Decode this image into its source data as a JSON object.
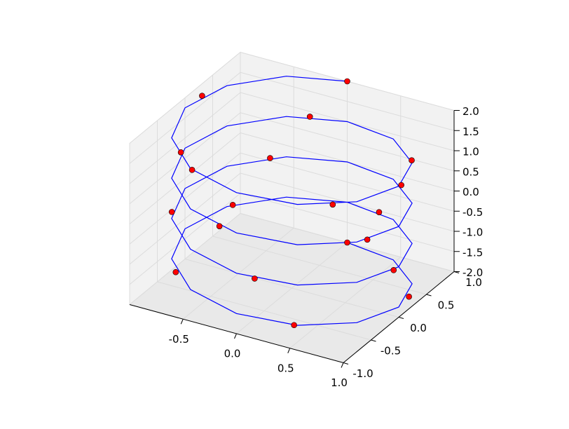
{
  "chart_data": {
    "type": "line3d",
    "xlim": [
      -1,
      1
    ],
    "ylim": [
      -1,
      1
    ],
    "zlim": [
      -2,
      2
    ],
    "xticks": [
      -0.5,
      {
        "value": 0,
        "label": "0.0"
      },
      0.5,
      {
        "value": 1,
        "label": "1.0"
      }
    ],
    "yticks": [
      {
        "value": -1,
        "label": "-1.0"
      },
      -0.5,
      {
        "value": 0,
        "label": "0.0"
      },
      0.5,
      {
        "value": 1,
        "label": "1.0"
      }
    ],
    "zticks": [
      {
        "value": -2,
        "label": "-2.0"
      },
      -1.5,
      {
        "value": -1,
        "label": "-1.0"
      },
      -0.5,
      {
        "value": 0,
        "label": "0.0"
      },
      0.5,
      {
        "value": 1,
        "label": "1.0"
      },
      1.5,
      {
        "value": 2,
        "label": "2.0"
      }
    ],
    "grid": true,
    "series": [
      {
        "kind": "line",
        "color": "#0000ff",
        "x": [
          0,
          0.5,
          0.866,
          1,
          0.866,
          0.5,
          0,
          -0.5,
          -0.866,
          -1,
          -0.866,
          -0.5,
          0,
          0.5,
          0.866,
          1,
          0.866,
          0.5,
          0,
          -0.5,
          -0.866,
          -1,
          -0.866,
          -0.5,
          0,
          0.5,
          0.866,
          1,
          0.866,
          0.5,
          0,
          -0.5,
          -0.866,
          -1,
          -0.866,
          -0.5,
          0,
          0.5,
          0.866,
          1,
          0.866,
          0.5,
          0,
          -0.5,
          -0.866,
          -1,
          -0.866,
          -0.5,
          0
        ],
        "y": [
          1,
          0.866,
          0.5,
          0,
          -0.5,
          -0.866,
          -1,
          -0.866,
          -0.5,
          0,
          0.5,
          0.866,
          1,
          0.866,
          0.5,
          0,
          -0.5,
          -0.866,
          -1,
          -0.866,
          -0.5,
          0,
          0.5,
          0.866,
          1,
          0.866,
          0.5,
          0,
          -0.5,
          -0.866,
          -1,
          -0.866,
          -0.5,
          0,
          0.5,
          0.866,
          1,
          0.866,
          0.5,
          0,
          -0.5,
          -0.866,
          -1,
          -0.866,
          -0.5,
          0,
          0.5,
          0.866,
          1
        ],
        "z": [
          -2,
          -1.917,
          -1.833,
          -1.75,
          -1.667,
          -1.583,
          -1.5,
          -1.417,
          -1.333,
          -1.25,
          -1.167,
          -1.083,
          -1,
          -0.917,
          -0.833,
          -0.75,
          -0.667,
          -0.583,
          -0.5,
          -0.417,
          -0.333,
          -0.25,
          -0.167,
          -0.083,
          0,
          0.083,
          0.167,
          0.25,
          0.333,
          0.417,
          0.5,
          0.583,
          0.667,
          0.75,
          0.833,
          0.917,
          1,
          1.083,
          1.167,
          1.25,
          1.333,
          1.417,
          1.5,
          1.583,
          1.667,
          1.75,
          1.833,
          1.917,
          2
        ]
      },
      {
        "kind": "scatter",
        "color": "#ff0000",
        "x": [
          0,
          0.969,
          0.476,
          -0.736,
          -0.837,
          0.326,
          0.996,
          0.163,
          -0.916,
          -0.613,
          0.616,
          0.915,
          -0.167,
          -0.997,
          -0.322,
          0.839,
          0.734,
          -0.479,
          -0.969,
          0
        ],
        "y": [
          1,
          0.245,
          -0.879,
          -0.677,
          0.548,
          0.946,
          -0.084,
          -0.987,
          -0.4,
          0.79,
          0.788,
          -0.404,
          -0.986,
          -0.08,
          0.947,
          0.545,
          -0.679,
          -0.878,
          0.249,
          1
        ],
        "z": [
          -2,
          -1.79,
          -1.58,
          -1.37,
          -1.16,
          -0.95,
          -0.74,
          -0.53,
          -0.32,
          -0.11,
          0.11,
          0.32,
          0.53,
          0.74,
          0.95,
          1.16,
          1.37,
          1.58,
          1.79,
          2
        ]
      }
    ]
  }
}
